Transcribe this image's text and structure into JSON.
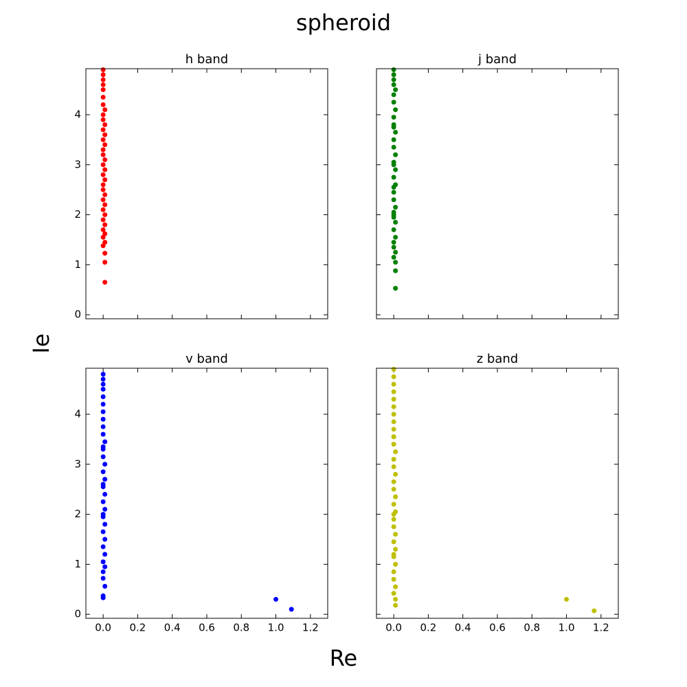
{
  "title": "spheroid",
  "xlabel": "Re",
  "ylabel": "Ie",
  "chart_data": [
    {
      "type": "scatter",
      "title": "h band",
      "color": "#ff0000",
      "x": [
        0.01,
        0.01,
        0.01,
        0.0,
        0.01,
        0.0,
        0.01,
        0.0,
        0.01,
        0.0,
        0.01,
        0.0,
        0.01,
        0.0,
        0.01,
        0.0,
        0.0,
        0.01,
        0.0,
        0.01,
        0.0,
        0.01,
        0.0,
        0.0,
        0.01,
        0.0,
        0.01,
        0.0,
        0.01,
        0.0,
        0.0,
        0.01,
        0.0,
        0.0,
        0.0,
        0.0,
        0.0,
        0.0,
        0.0
      ],
      "y": [
        0.65,
        1.05,
        1.23,
        1.38,
        1.45,
        1.55,
        1.62,
        1.7,
        1.8,
        1.9,
        2.0,
        2.1,
        2.2,
        2.3,
        2.4,
        2.5,
        2.6,
        2.7,
        2.8,
        2.9,
        3.0,
        3.1,
        3.2,
        3.3,
        3.4,
        3.5,
        3.6,
        3.7,
        3.8,
        3.9,
        4.0,
        4.1,
        4.2,
        4.35,
        4.5,
        4.6,
        4.7,
        4.8,
        4.9
      ],
      "xlim": [
        -0.1,
        1.3
      ],
      "ylim": [
        -0.08,
        4.92
      ],
      "xticks": [
        {
          "value": 0,
          "label": "0.0"
        },
        {
          "value": 0.2,
          "label": "0.2"
        },
        {
          "value": 0.4,
          "label": "0.4"
        },
        {
          "value": 0.6,
          "label": "0.6"
        },
        {
          "value": 0.8,
          "label": "0.8"
        },
        {
          "value": 1.0,
          "label": "1.0"
        },
        {
          "value": 1.2,
          "label": "1.2"
        }
      ],
      "yticks": [
        0,
        1,
        2,
        3,
        4
      ]
    },
    {
      "type": "scatter",
      "title": "j band",
      "color": "#008000",
      "x": [
        0.01,
        0.01,
        0.01,
        0.0,
        0.01,
        0.0,
        0.0,
        0.01,
        0.0,
        0.01,
        0.0,
        0.01,
        0.0,
        0.0,
        0.01,
        0.0,
        0.01,
        0.0,
        0.01,
        0.0,
        0.0,
        0.01,
        0.0,
        0.0,
        0.01,
        0.0,
        0.0,
        0.01,
        0.0,
        0.0,
        0.0,
        0.0,
        0.0,
        0.0,
        0.0,
        0.0,
        0.0
      ],
      "y": [
        0.53,
        0.88,
        1.05,
        1.15,
        1.25,
        1.35,
        1.45,
        1.55,
        1.7,
        1.85,
        2.0,
        2.15,
        2.3,
        2.45,
        2.6,
        2.75,
        2.9,
        3.05,
        3.2,
        3.35,
        3.5,
        3.65,
        3.8,
        3.95,
        4.1,
        4.25,
        4.4,
        4.5,
        4.6,
        4.7,
        4.8,
        4.9,
        2.05,
        2.55,
        3.0,
        3.75,
        1.95
      ],
      "xlim": [
        -0.1,
        1.3
      ],
      "ylim": [
        -0.08,
        4.92
      ],
      "xticks": [
        {
          "value": 0,
          "label": "0.0"
        },
        {
          "value": 0.2,
          "label": "0.2"
        },
        {
          "value": 0.4,
          "label": "0.4"
        },
        {
          "value": 0.6,
          "label": "0.6"
        },
        {
          "value": 0.8,
          "label": "0.8"
        },
        {
          "value": 1.0,
          "label": "1.0"
        },
        {
          "value": 1.2,
          "label": "1.2"
        }
      ],
      "yticks": [
        0,
        1,
        2,
        3,
        4
      ]
    },
    {
      "type": "scatter",
      "title": "v band",
      "color": "#0000ff",
      "x": [
        1.0,
        1.09,
        0.0,
        0.0,
        0.01,
        0.0,
        0.0,
        0.01,
        0.0,
        0.01,
        0.0,
        0.01,
        0.0,
        0.01,
        0.0,
        0.01,
        0.0,
        0.01,
        0.0,
        0.01,
        0.0,
        0.01,
        0.0,
        0.0,
        0.01,
        0.0,
        0.0,
        0.0,
        0.0,
        0.0,
        0.0,
        0.0,
        0.0,
        0.0,
        0.0,
        0.0,
        0.0,
        0.0
      ],
      "y": [
        0.3,
        0.1,
        0.33,
        0.37,
        0.56,
        0.72,
        0.85,
        0.95,
        1.05,
        1.2,
        1.35,
        1.5,
        1.65,
        1.8,
        1.95,
        2.1,
        2.25,
        2.4,
        2.55,
        2.7,
        2.85,
        3.0,
        3.15,
        3.3,
        3.45,
        3.6,
        3.75,
        3.9,
        4.05,
        4.2,
        4.35,
        4.5,
        4.6,
        4.7,
        4.8,
        2.0,
        2.6,
        3.35
      ],
      "xlim": [
        -0.1,
        1.3
      ],
      "ylim": [
        -0.08,
        4.92
      ],
      "xticks": [
        {
          "value": 0,
          "label": "0.0"
        },
        {
          "value": 0.2,
          "label": "0.2"
        },
        {
          "value": 0.4,
          "label": "0.4"
        },
        {
          "value": 0.6,
          "label": "0.6"
        },
        {
          "value": 0.8,
          "label": "0.8"
        },
        {
          "value": 1.0,
          "label": "1.0"
        },
        {
          "value": 1.2,
          "label": "1.2"
        }
      ],
      "yticks": [
        0,
        1,
        2,
        3,
        4
      ]
    },
    {
      "type": "scatter",
      "title": "z band",
      "color": "#bfbf00",
      "x": [
        1.0,
        1.16,
        0.01,
        0.01,
        0.0,
        0.01,
        0.0,
        0.0,
        0.01,
        0.0,
        0.01,
        0.0,
        0.01,
        0.0,
        0.0,
        0.01,
        0.0,
        0.01,
        0.0,
        0.0,
        0.01,
        0.0,
        0.0,
        0.01,
        0.0,
        0.0,
        0.0,
        0.0,
        0.0,
        0.0,
        0.0,
        0.0,
        0.0,
        0.0,
        0.0,
        0.0,
        0.0,
        0.0
      ],
      "y": [
        0.3,
        0.07,
        0.18,
        0.3,
        0.42,
        0.55,
        0.7,
        0.85,
        1.0,
        1.15,
        1.3,
        1.45,
        1.6,
        1.75,
        1.9,
        2.05,
        2.2,
        2.35,
        2.5,
        2.65,
        2.8,
        2.95,
        3.1,
        3.25,
        3.4,
        3.55,
        3.7,
        3.85,
        4.0,
        4.15,
        4.3,
        4.45,
        4.6,
        4.75,
        4.9,
        3.55,
        2.0,
        1.2
      ],
      "xlim": [
        -0.1,
        1.3
      ],
      "ylim": [
        -0.08,
        4.92
      ],
      "xticks": [
        {
          "value": 0,
          "label": "0.0"
        },
        {
          "value": 0.2,
          "label": "0.2"
        },
        {
          "value": 0.4,
          "label": "0.4"
        },
        {
          "value": 0.6,
          "label": "0.6"
        },
        {
          "value": 0.8,
          "label": "0.8"
        },
        {
          "value": 1.0,
          "label": "1.0"
        },
        {
          "value": 1.2,
          "label": "1.2"
        }
      ],
      "yticks": [
        0,
        1,
        2,
        3,
        4
      ]
    }
  ]
}
